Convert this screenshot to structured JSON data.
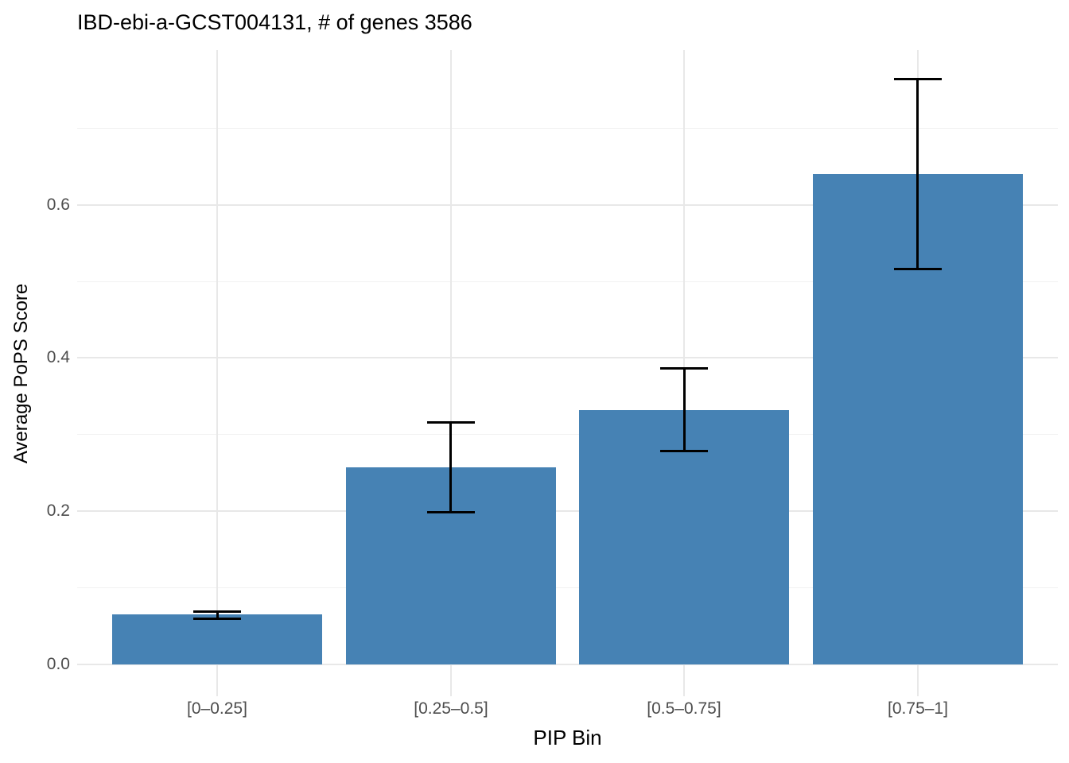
{
  "chart_data": {
    "type": "bar",
    "title": "IBD-ebi-a-GCST004131, # of genes 3586",
    "xlabel": "PIP Bin",
    "ylabel": "Average PoPS Score",
    "categories": [
      "[0–0.25]",
      "[0.25–0.5]",
      "[0.5–0.75]",
      "[0.75–1]"
    ],
    "series": [
      {
        "name": "Average PoPS Score",
        "values": [
          0.065,
          0.257,
          0.332,
          0.64
        ],
        "error_low": [
          0.06,
          0.199,
          0.279,
          0.516
        ],
        "error_high": [
          0.069,
          0.316,
          0.386,
          0.764
        ]
      }
    ],
    "y_ticks": [
      0.0,
      0.2,
      0.4,
      0.6
    ],
    "y_tick_labels": [
      "0.0",
      "0.2",
      "0.4",
      "0.6"
    ],
    "y_minor_ticks": [
      0.1,
      0.3,
      0.5,
      0.7
    ],
    "ylim": [
      -0.0415,
      0.802
    ],
    "grid": "horizontal major+minor, vertical major at category centers",
    "legend_position": "none",
    "colors": {
      "bar_fill": "#4682B4",
      "errorbar": "#000000",
      "gridline_major": "#e8e8e8",
      "gridline_minor": "#f2f2f2",
      "tick_label": "#4d4d4d",
      "axis_title": "#000000",
      "background": "#ffffff"
    }
  }
}
